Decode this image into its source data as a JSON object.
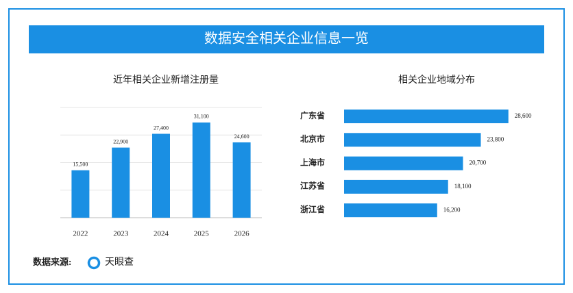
{
  "title": "数据安全相关企业信息一览",
  "chart_data": [
    {
      "type": "bar",
      "title": "近年相关企业新增注册量",
      "categories": [
        "2022",
        "2023",
        "2024",
        "2025",
        "2026"
      ],
      "values": [
        15500,
        22900,
        27400,
        31100,
        24600
      ],
      "value_labels": [
        "15,500",
        "22,900",
        "27,400",
        "31,100",
        "24,600"
      ],
      "color": "#1a8fe3",
      "ylim": [
        0,
        36000
      ],
      "yticks": [
        0,
        9000,
        18000,
        27000,
        36000
      ],
      "grid": true
    },
    {
      "type": "hbar",
      "title": "相关企业地域分布",
      "categories": [
        "广东省",
        "北京市",
        "上海市",
        "江苏省",
        "浙江省"
      ],
      "values": [
        28600,
        23800,
        20700,
        18100,
        16200
      ],
      "value_labels": [
        "28,600",
        "23,800",
        "20,700",
        "18,100",
        "16,200"
      ],
      "color": "#1a8fe3",
      "xlim": [
        0,
        34000
      ]
    }
  ],
  "source": {
    "label": "数据来源:",
    "name": "天眼查"
  }
}
